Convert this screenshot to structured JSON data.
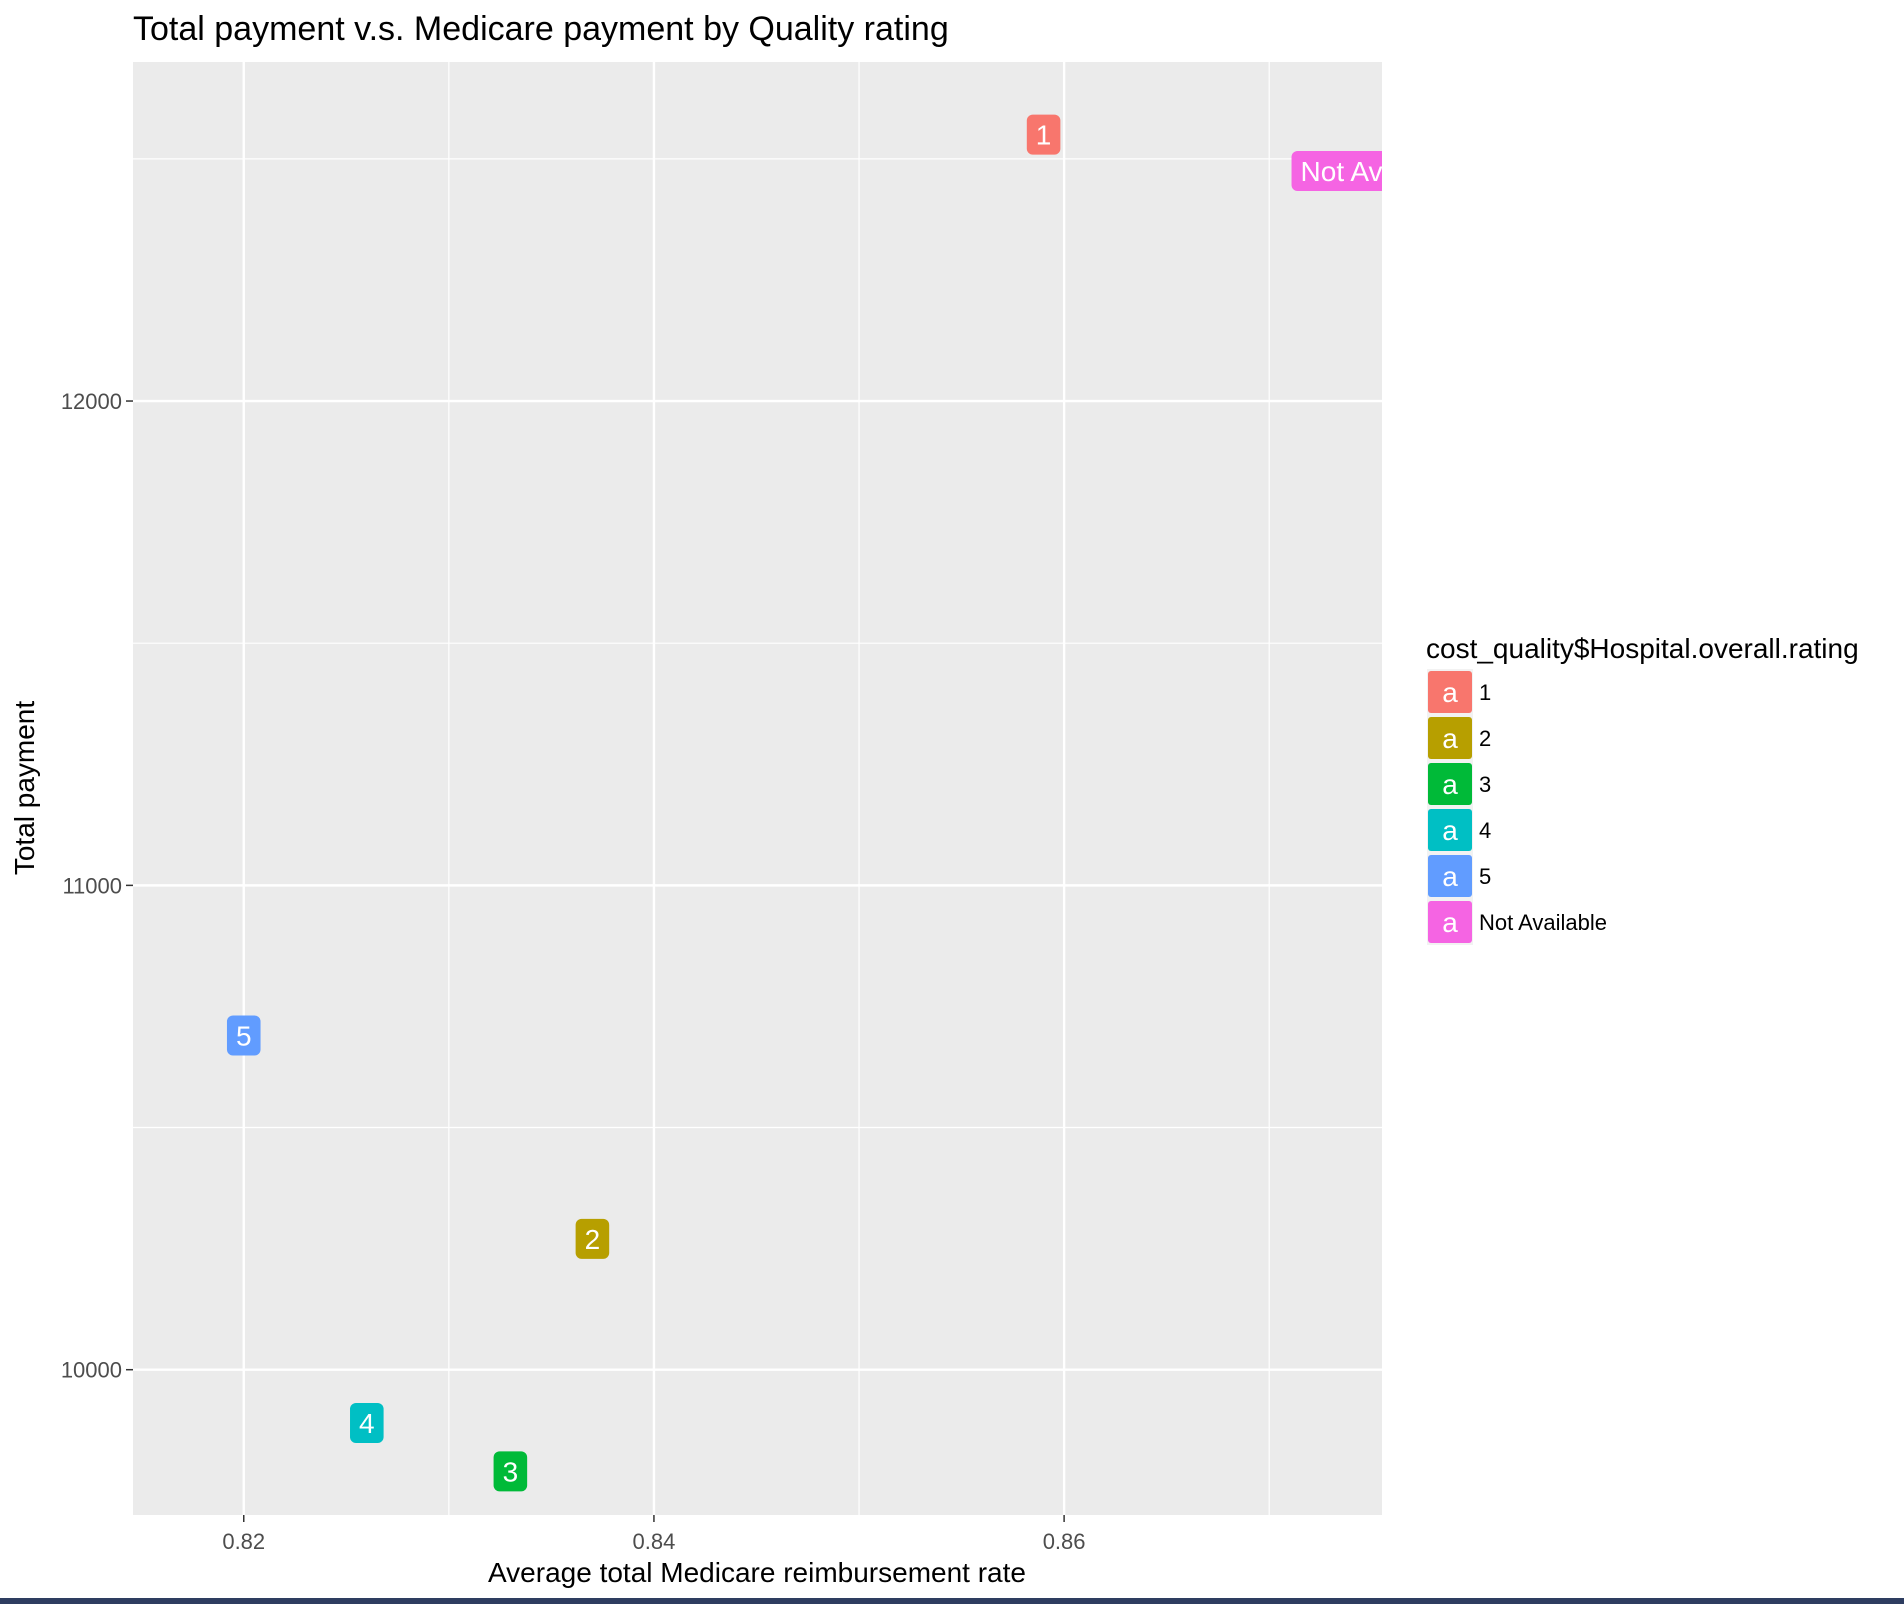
{
  "chart_data": {
    "type": "scatter",
    "title": "Total payment v.s. Medicare payment by Quality rating",
    "xlabel": "Average total Medicare reimbursement rate",
    "ylabel": "Total payment",
    "xlim": [
      0.8146,
      0.8755
    ],
    "ylim": [
      9700,
      12700
    ],
    "x_ticks": [
      0.82,
      0.84,
      0.86
    ],
    "x_tick_labels": [
      "0.82",
      "0.84",
      "0.86"
    ],
    "y_ticks": [
      10000,
      11000,
      12000
    ],
    "y_tick_labels": [
      "10000",
      "11000",
      "12000"
    ],
    "grid": true,
    "legend": {
      "title": "cost_quality$Hospital.overall.rating",
      "position": "right",
      "key_glyph": "a",
      "entries": [
        {
          "label": "1",
          "color": "#F8766D"
        },
        {
          "label": "2",
          "color": "#B79F00"
        },
        {
          "label": "3",
          "color": "#00BA38"
        },
        {
          "label": "4",
          "color": "#00BFC4"
        },
        {
          "label": "5",
          "color": "#619CFF"
        },
        {
          "label": "Not Available",
          "color": "#F564E3"
        }
      ]
    },
    "points": [
      {
        "label": "1",
        "x": 0.859,
        "y": 12550,
        "color": "#F8766D"
      },
      {
        "label": "2",
        "x": 0.837,
        "y": 10270,
        "color": "#B79F00"
      },
      {
        "label": "3",
        "x": 0.833,
        "y": 9790,
        "color": "#00BA38"
      },
      {
        "label": "4",
        "x": 0.826,
        "y": 9890,
        "color": "#00BFC4"
      },
      {
        "label": "5",
        "x": 0.82,
        "y": 10690,
        "color": "#619CFF"
      },
      {
        "label": "Not Available",
        "x": 0.8755,
        "y": 12475,
        "color": "#F564E3"
      }
    ]
  }
}
